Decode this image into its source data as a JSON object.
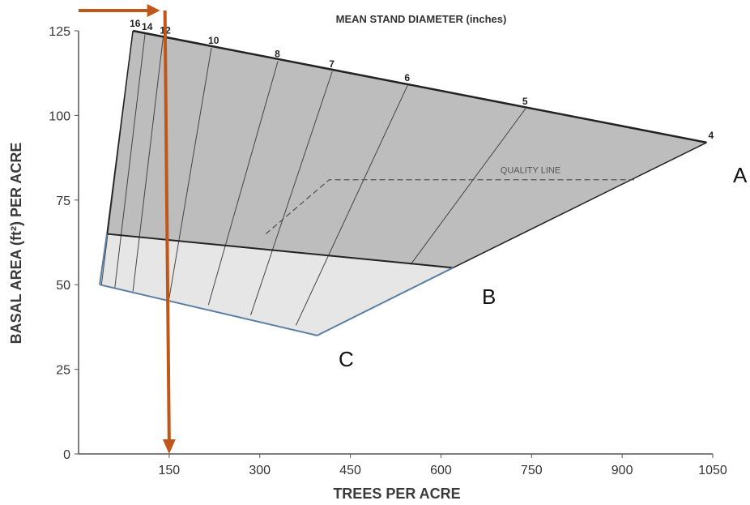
{
  "chart_data": {
    "type": "line",
    "title": "MEAN STAND DIAMETER (inches)",
    "xlabel": "TREES PER ACRE",
    "ylabel": "BASAL AREA (ft²) PER ACRE",
    "xlim": [
      0,
      1050
    ],
    "ylim": [
      0,
      125
    ],
    "x_ticks": [
      "150",
      "300",
      "450",
      "600",
      "750",
      "900",
      "1050"
    ],
    "y_ticks": [
      "0",
      "25",
      "50",
      "75",
      "100",
      "125"
    ],
    "curves": [
      {
        "label": "A",
        "points": [
          [
            90,
            125
          ],
          [
            1040,
            92
          ]
        ]
      },
      {
        "label": "B",
        "points": [
          [
            47,
            65
          ],
          [
            620,
            55
          ]
        ]
      },
      {
        "label": "C",
        "points": [
          [
            35,
            50
          ],
          [
            395,
            35
          ]
        ]
      }
    ],
    "diameter_lines": [
      {
        "label": "16",
        "top": [
          90,
          125
        ],
        "bottom": [
          38,
          50
        ]
      },
      {
        "label": "14",
        "top": [
          110,
          124
        ],
        "bottom": [
          60,
          49
        ]
      },
      {
        "label": "12",
        "top": [
          140,
          123
        ],
        "bottom": [
          90,
          48
        ]
      },
      {
        "label": "10",
        "top": [
          220,
          120
        ],
        "bottom": [
          150,
          46
        ]
      },
      {
        "label": "8",
        "top": [
          330,
          116
        ],
        "bottom": [
          215,
          44
        ]
      },
      {
        "label": "7",
        "top": [
          420,
          113
        ],
        "bottom": [
          285,
          41
        ]
      },
      {
        "label": "6",
        "top": [
          545,
          109
        ],
        "bottom": [
          360,
          38
        ]
      },
      {
        "label": "5",
        "top": [
          740,
          102
        ],
        "bottom": [
          550,
          56
        ]
      },
      {
        "label": "4",
        "top": [
          1040,
          92
        ],
        "bottom": [
          1040,
          92
        ]
      }
    ],
    "quality_line": {
      "label": "QUALITY LINE",
      "points": [
        [
          310,
          65
        ],
        [
          415,
          81
        ],
        [
          920,
          81
        ]
      ]
    },
    "reference_arrows": [
      {
        "points": [
          [
            0,
            131
          ],
          [
            135,
            131
          ]
        ]
      },
      {
        "points": [
          [
            143,
            131
          ],
          [
            150,
            0
          ]
        ]
      }
    ],
    "colors": {
      "upper_region": "#bdbdbd",
      "lower_region": "#e6e6e6",
      "outline_dark": "#222222",
      "outline_blue": "#5b7fa3",
      "diameter_lines": "#444444",
      "arrow": "#c0571a"
    }
  }
}
